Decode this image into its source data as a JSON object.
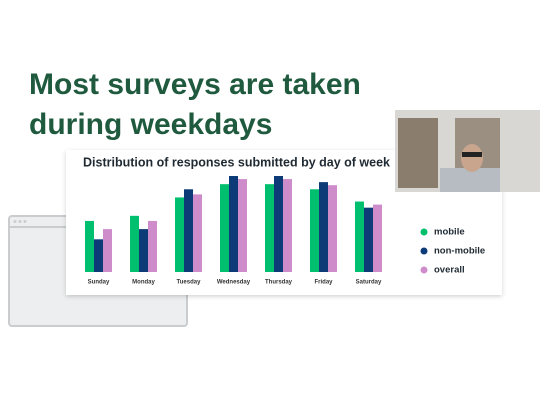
{
  "header": {
    "title_lines": [
      "Most surveys are taken",
      "during weekdays"
    ]
  },
  "chart_data": {
    "type": "bar",
    "title": "Distribution of responses submitted by day of week",
    "categories": [
      "Sunday",
      "Monday",
      "Tuesday",
      "Wednesday",
      "Thursday",
      "Friday",
      "Saturday"
    ],
    "series": [
      {
        "name": "mobile",
        "color": "#00bf6f",
        "values": [
          50,
          55,
          73,
          86,
          86,
          81,
          69
        ]
      },
      {
        "name": "non-mobile",
        "color": "#0d3b78",
        "values": [
          32,
          42,
          81,
          94,
          94,
          88,
          63
        ]
      },
      {
        "name": "overall",
        "color": "#cf8ccb",
        "values": [
          42,
          50,
          76,
          91,
          91,
          85,
          66
        ]
      }
    ],
    "legend": "right"
  }
}
